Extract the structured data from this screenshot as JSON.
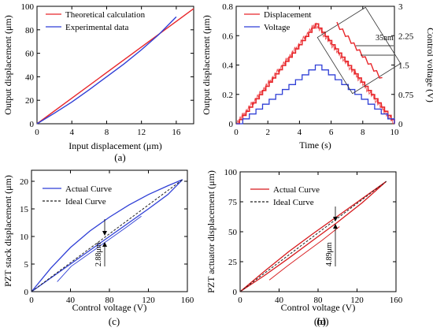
{
  "chart_data": [
    {
      "type": "line",
      "caption": "(a)",
      "xlabel": "Input displacement (μm)",
      "ylabel": "Output displacement (μm)",
      "xlim": [
        0,
        18
      ],
      "ylim": [
        0,
        100
      ],
      "xticks": [
        0,
        4,
        8,
        12,
        16
      ],
      "yticks": [
        0,
        20,
        40,
        60,
        80,
        100
      ],
      "legend_position": "top-left",
      "series": [
        {
          "name": "Theoretical calculation",
          "color": "#e8262a",
          "x": [
            0,
            18
          ],
          "y": [
            0,
            98
          ]
        },
        {
          "name": "Experimental data",
          "color": "#2f3fd6",
          "x": [
            0,
            2,
            4,
            6,
            8,
            10,
            12,
            14,
            16
          ],
          "y": [
            0,
            9,
            18.5,
            29,
            40,
            51,
            63,
            76,
            91
          ]
        }
      ]
    },
    {
      "type": "line",
      "caption": "(b)",
      "xlabel": "Time (s)",
      "ylabel": "Output displacement (μm)",
      "y2label": "Control voltage (V)",
      "xlim": [
        0,
        10
      ],
      "ylim": [
        0,
        0.8
      ],
      "y2lim": [
        0,
        3
      ],
      "xticks": [
        0,
        2,
        4,
        6,
        8,
        10
      ],
      "yticks": [
        0,
        0.2,
        0.4,
        0.6,
        0.8
      ],
      "y2ticks": [
        "0",
        "0.75",
        "1.5",
        "2.25",
        "3"
      ],
      "legend_position": "top-left",
      "annotation": "35nm",
      "series": [
        {
          "name": "Displacement",
          "color": "#e8262a",
          "axis": "left",
          "shape": "staircase_triangle",
          "peak_time": 5,
          "peak_value": 0.68,
          "steps_per_side": 24
        },
        {
          "name": "Voltage",
          "color": "#2f3fd6",
          "axis": "right",
          "shape": "staircase_triangle",
          "peak_time": 5,
          "peak_value": 1.5,
          "steps_per_side": 12
        }
      ]
    },
    {
      "type": "line",
      "caption": "(c)",
      "xlabel": "Control voltage (V)",
      "ylabel": "PZT stack displacement (μm)",
      "xlim": [
        0,
        160
      ],
      "ylim": [
        0,
        22
      ],
      "xticks": [
        0,
        40,
        80,
        120,
        160
      ],
      "yticks": [
        0,
        5,
        10,
        15,
        20
      ],
      "legend_position": "top-left",
      "annotation": "2.88μm",
      "series": [
        {
          "name": "Actual Curve",
          "color": "#2f3fd6",
          "x": [
            0,
            20,
            40,
            60,
            80,
            100,
            120,
            140,
            155
          ],
          "y_ascending": [
            0,
            2.5,
            5,
            7.5,
            10,
            12.5,
            15,
            17.6,
            20.3
          ],
          "y_descending": [
            0,
            4.3,
            8,
            11,
            13.5,
            15.7,
            17.6,
            19.2,
            20.3
          ]
        },
        {
          "name": "Ideal Curve",
          "color": "#222222",
          "dash": true,
          "x": [
            0,
            155
          ],
          "y": [
            0,
            20.3
          ]
        }
      ]
    },
    {
      "type": "line",
      "caption": "(d)",
      "xlabel": "Control voltage (V)",
      "ylabel": "PZT actuator displacement (μm)",
      "xlim": [
        0,
        160
      ],
      "ylim": [
        0,
        100
      ],
      "xticks": [
        0,
        40,
        80,
        120,
        160
      ],
      "yticks": [
        0,
        25,
        50,
        75,
        100
      ],
      "legend_position": "top-left",
      "annotation": "4.89μm",
      "series": [
        {
          "name": "Actual Curve",
          "color": "#d7191c",
          "x": [
            0,
            25,
            50,
            75,
            100,
            125,
            150
          ],
          "y_ascending": [
            0,
            13.5,
            28,
            43,
            58,
            74,
            92
          ],
          "y_descending": [
            0,
            17,
            33.5,
            48.5,
            63,
            77.5,
            92
          ]
        },
        {
          "name": "Ideal Curve",
          "color": "#222222",
          "dash": true,
          "x": [
            0,
            150
          ],
          "y": [
            0,
            92
          ]
        }
      ]
    }
  ]
}
